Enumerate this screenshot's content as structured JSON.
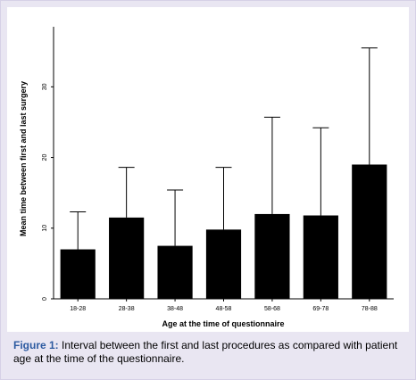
{
  "caption": {
    "label": "Figure 1:",
    "text": " Interval between the first and last procedures as compared with patient age at the time of the questionnaire."
  },
  "colors": {
    "bar": "#000000",
    "frame_background": "#e9e6f2",
    "caption_label": "#2c5aa0"
  },
  "chart_data": {
    "type": "bar",
    "title": "",
    "xlabel": "Age at the time of questionnaire",
    "ylabel": "Mean time between first and last surgery",
    "categories": [
      "18-28",
      "28-38",
      "38-48",
      "48-58",
      "58-68",
      "69-78",
      "78-88"
    ],
    "series": [
      {
        "values": [
          7.0,
          11.5,
          7.5,
          9.8,
          12.0,
          11.8,
          19.0
        ],
        "error_upper": [
          12.3,
          18.6,
          15.4,
          18.6,
          25.7,
          24.2,
          35.5
        ]
      }
    ],
    "yticks": [
      0,
      10,
      20,
      30
    ],
    "ylim": [
      0,
      38.5
    ],
    "grid": false,
    "legend": "none"
  }
}
